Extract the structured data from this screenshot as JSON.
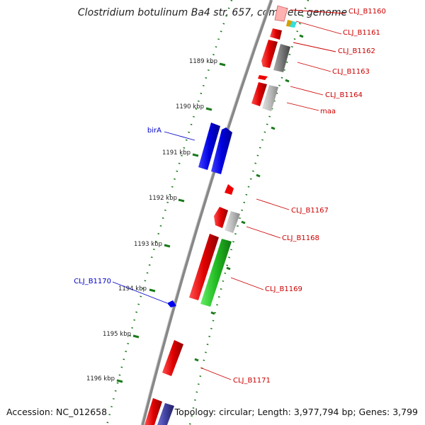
{
  "title": "Clostridium botulinum Ba4 str. 657, complete genome",
  "accession": "Accession: NC_012658",
  "topology": "Topology: circular; Length: 3,977,794 bp; Genes: 3,799",
  "kbp_ticks": [
    "1189 kbp",
    "1190 kbp",
    "1191 kbp",
    "1192 kbp",
    "1193 kbp",
    "1194 kbp",
    "1195 kbp",
    "1196 kbp"
  ],
  "gene_labels_right": [
    "CLJ_B1160",
    "CLJ_B1161",
    "CLJ_B1162",
    "CLJ_B1163",
    "CLJ_B1164",
    "maa",
    "CLJ_B1167",
    "CLJ_B1168",
    "CLJ_B1169",
    "CLJ_B1171"
  ],
  "gene_labels_left": [
    "birA",
    "CLJ_B1170"
  ],
  "colors": {
    "forward_gene": "#e00000",
    "birA": "#0000e0",
    "tRNA": "#22bb22",
    "grey_gene": "#777777",
    "light_grey_gene": "#bbbbbb",
    "cyan_gene": "#33dddd",
    "navy_gene": "#4040a0",
    "tick_green": "#1a7a1a",
    "backbone": "#888888"
  }
}
